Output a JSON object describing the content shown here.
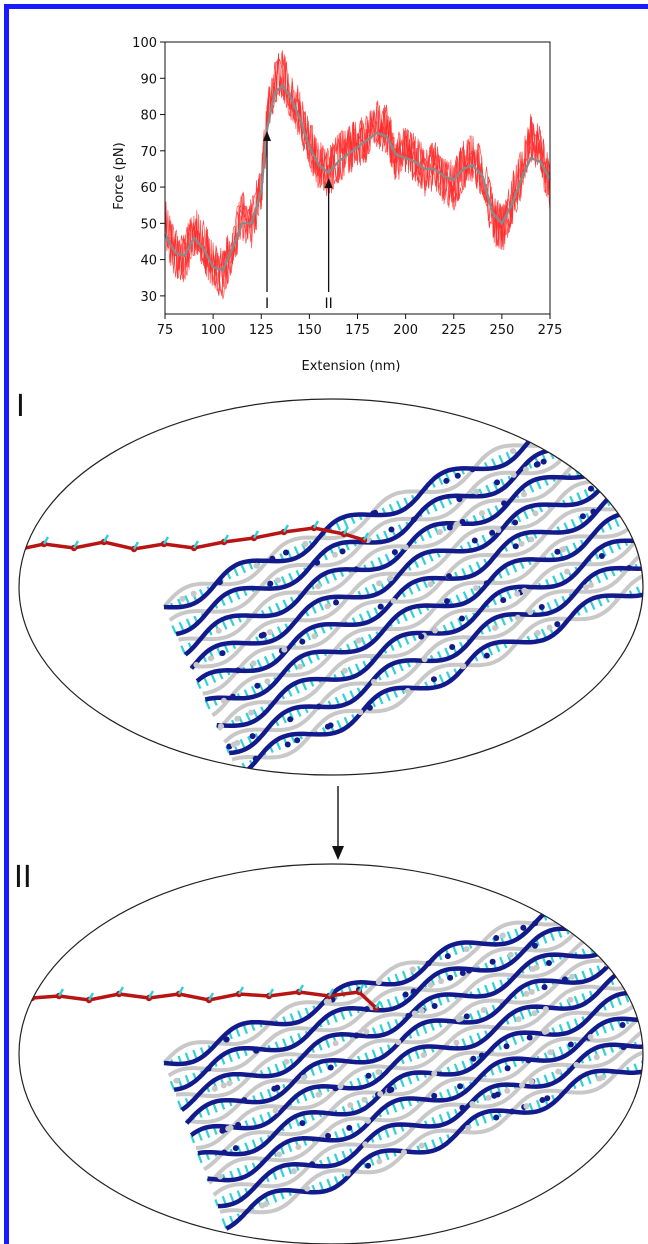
{
  "chart_data": {
    "type": "line",
    "xlabel": "Extension (nm)",
    "ylabel": "Force (pN)",
    "xlim": [
      75,
      275
    ],
    "ylim": [
      25,
      100
    ],
    "xticks": [
      "75",
      "100",
      "125",
      "150",
      "175",
      "200",
      "225",
      "250",
      "275"
    ],
    "yticks": [
      "30",
      "40",
      "50",
      "60",
      "70",
      "80",
      "90",
      "100"
    ],
    "grid": false,
    "colors": {
      "raw": "#ff2a2a",
      "smoothed": "#8a8a8a"
    },
    "series": [
      {
        "style": "raw-noisy",
        "x": [
          75,
          80,
          85,
          90,
          95,
          100,
          105,
          110,
          115,
          120,
          125,
          128,
          132,
          136,
          140,
          145,
          150,
          155,
          160,
          165,
          170,
          175,
          180,
          185,
          190,
          195,
          200,
          205,
          210,
          215,
          220,
          225,
          230,
          235,
          240,
          245,
          250,
          255,
          260,
          265,
          270,
          275
        ],
        "y": [
          50,
          42,
          40,
          48,
          44,
          38,
          36,
          44,
          52,
          50,
          60,
          78,
          90,
          91,
          86,
          80,
          72,
          66,
          64,
          68,
          70,
          72,
          74,
          78,
          76,
          68,
          70,
          68,
          64,
          66,
          62,
          60,
          66,
          68,
          64,
          52,
          48,
          56,
          64,
          74,
          70,
          60
        ]
      },
      {
        "style": "smoothed",
        "x": [
          75,
          80,
          85,
          90,
          95,
          100,
          105,
          110,
          115,
          120,
          125,
          128,
          132,
          136,
          140,
          145,
          150,
          155,
          160,
          165,
          170,
          175,
          180,
          185,
          190,
          195,
          200,
          205,
          210,
          215,
          220,
          225,
          230,
          235,
          240,
          245,
          250,
          255,
          260,
          265,
          270,
          275
        ],
        "y": [
          47,
          42,
          41,
          46,
          43,
          38,
          37,
          43,
          50,
          50,
          59,
          76,
          86,
          88,
          85,
          79,
          71,
          66,
          64,
          67,
          69,
          71,
          73,
          75,
          74,
          69,
          68,
          67,
          65,
          65,
          63,
          62,
          65,
          66,
          63,
          53,
          50,
          55,
          62,
          68,
          67,
          62
        ]
      }
    ],
    "annotations": [
      {
        "label": "I",
        "x": 128,
        "y": 76
      },
      {
        "label": "II",
        "x": 160,
        "y": 63
      }
    ]
  },
  "panels": {
    "first_label": "I",
    "second_label": "II"
  },
  "scene_colors": {
    "pulled_strand": "#b81414",
    "backbone_dark": "#121a8c",
    "bases": "#2fd0d8",
    "backbone_light": "#c8c8c8"
  },
  "icons": {
    "transition": "down-arrow-icon",
    "structure": "dna-origami-bundle-icon"
  }
}
